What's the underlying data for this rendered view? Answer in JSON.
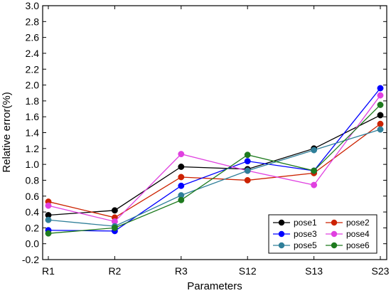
{
  "chart_data": {
    "type": "line",
    "title": "",
    "xlabel": "Parameters",
    "ylabel": "Relative error(%)",
    "categories": [
      "R1",
      "R2",
      "R3",
      "S12",
      "S13",
      "S23"
    ],
    "ylim": [
      -0.2,
      3.0
    ],
    "yticks": [
      "-0.2",
      "0.0",
      "0.2",
      "0.4",
      "0.6",
      "0.8",
      "1.0",
      "1.2",
      "1.4",
      "1.6",
      "1.8",
      "2.0",
      "2.2",
      "2.4",
      "2.6",
      "2.8",
      "3.0"
    ],
    "grid": false,
    "legend_position": "bottom-right",
    "series": [
      {
        "name": "pose1",
        "color": "#000000",
        "values": [
          0.36,
          0.42,
          0.97,
          0.94,
          1.2,
          1.62
        ]
      },
      {
        "name": "pose2",
        "color": "#cc2200",
        "values": [
          0.53,
          0.33,
          0.84,
          0.8,
          0.89,
          1.51
        ]
      },
      {
        "name": "pose3",
        "color": "#0000ff",
        "values": [
          0.17,
          0.16,
          0.73,
          1.04,
          0.92,
          1.96
        ]
      },
      {
        "name": "pose4",
        "color": "#e040e0",
        "values": [
          0.48,
          0.28,
          1.13,
          0.92,
          0.74,
          1.87
        ]
      },
      {
        "name": "pose5",
        "color": "#2f7f99",
        "values": [
          0.3,
          0.22,
          0.61,
          0.92,
          1.18,
          1.44
        ]
      },
      {
        "name": "pose6",
        "color": "#1e7a1e",
        "values": [
          0.13,
          0.2,
          0.55,
          1.12,
          0.92,
          1.75
        ]
      }
    ]
  }
}
